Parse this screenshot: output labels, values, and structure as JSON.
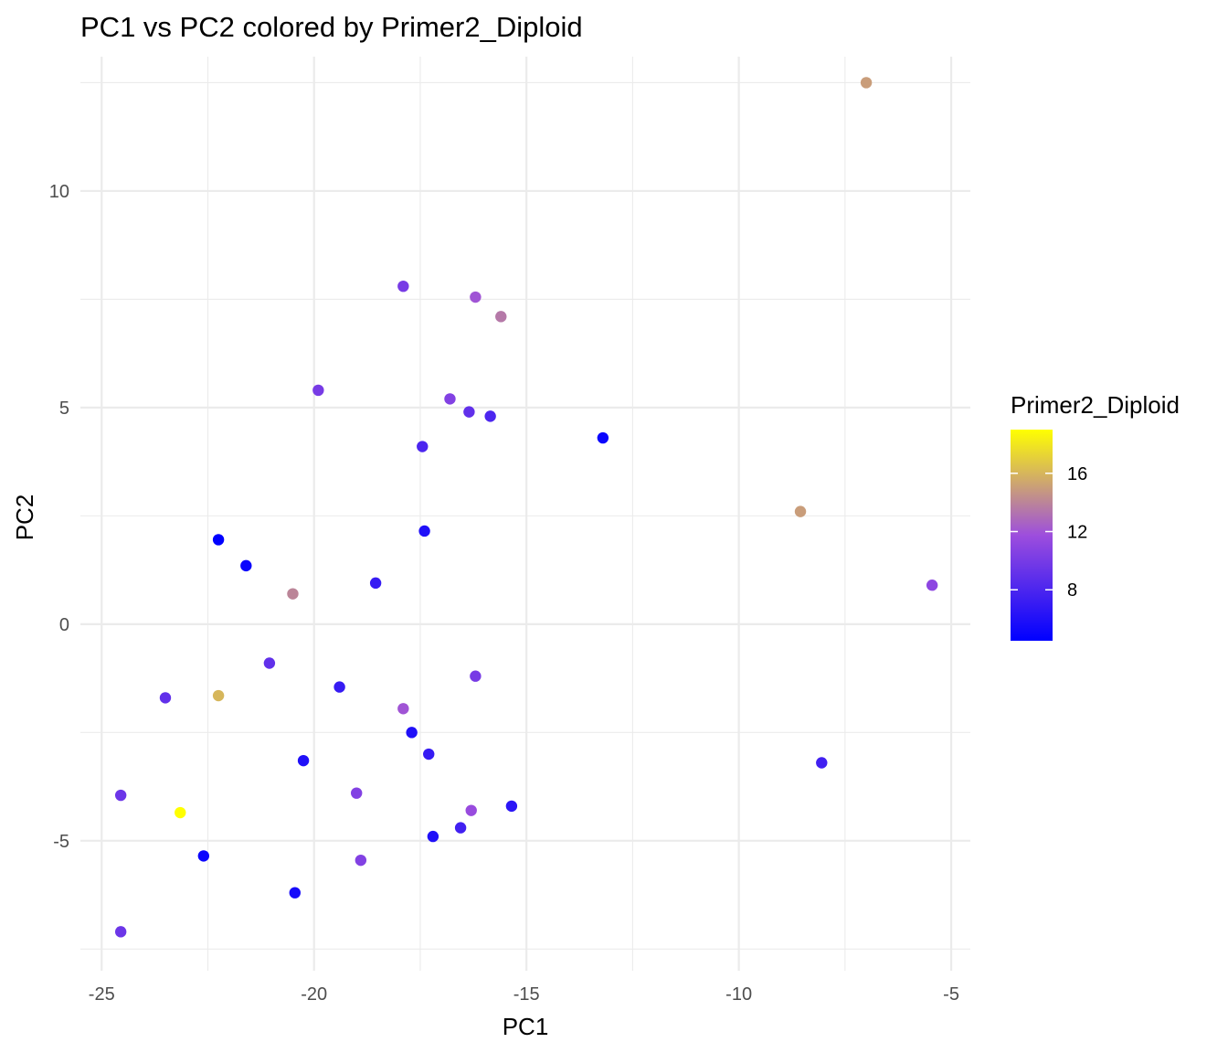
{
  "chart_data": {
    "type": "scatter",
    "title": "PC1 vs PC2 colored by Primer2_Diploid",
    "xlabel": "PC1",
    "ylabel": "PC2",
    "xlim": [
      -25.5,
      -4.55
    ],
    "ylim": [
      -8.0,
      13.1
    ],
    "x_ticks": [
      -25,
      -20,
      -15,
      -10,
      -5
    ],
    "y_ticks": [
      -5,
      0,
      5,
      10
    ],
    "x_tick_labels": [
      "-25",
      "-20",
      "-15",
      "-10",
      "-5"
    ],
    "y_tick_labels": [
      "-5",
      "0",
      "5",
      "10"
    ],
    "grid": true,
    "legend": {
      "title": "Primer2_Diploid",
      "placement": "right",
      "type": "colorbar",
      "range": [
        4.5,
        19
      ],
      "ticks": [
        8,
        12,
        16
      ],
      "tick_labels": [
        "8",
        "12",
        "16"
      ],
      "colors": [
        "#0000ff",
        "#9d4edd",
        "#ffff00"
      ]
    },
    "points": [
      {
        "x": -7.0,
        "y": 12.5,
        "value": 15
      },
      {
        "x": -17.9,
        "y": 7.8,
        "value": 10
      },
      {
        "x": -16.2,
        "y": 7.55,
        "value": 12
      },
      {
        "x": -15.6,
        "y": 7.1,
        "value": 13.5
      },
      {
        "x": -19.9,
        "y": 5.4,
        "value": 10
      },
      {
        "x": -16.8,
        "y": 5.2,
        "value": 10.5
      },
      {
        "x": -16.35,
        "y": 4.9,
        "value": 9
      },
      {
        "x": -15.85,
        "y": 4.8,
        "value": 8
      },
      {
        "x": -17.45,
        "y": 4.1,
        "value": 8
      },
      {
        "x": -13.2,
        "y": 4.3,
        "value": 5
      },
      {
        "x": -8.55,
        "y": 2.6,
        "value": 15
      },
      {
        "x": -22.25,
        "y": 1.95,
        "value": 4.5
      },
      {
        "x": -21.6,
        "y": 1.35,
        "value": 5
      },
      {
        "x": -17.4,
        "y": 2.15,
        "value": 6
      },
      {
        "x": -18.55,
        "y": 0.95,
        "value": 7
      },
      {
        "x": -20.5,
        "y": 0.7,
        "value": 14
      },
      {
        "x": -5.45,
        "y": 0.9,
        "value": 11
      },
      {
        "x": -21.05,
        "y": -0.9,
        "value": 9
      },
      {
        "x": -16.2,
        "y": -1.2,
        "value": 10
      },
      {
        "x": -23.5,
        "y": -1.7,
        "value": 9
      },
      {
        "x": -22.25,
        "y": -1.65,
        "value": 16
      },
      {
        "x": -19.4,
        "y": -1.45,
        "value": 7
      },
      {
        "x": -17.9,
        "y": -1.95,
        "value": 12
      },
      {
        "x": -17.7,
        "y": -2.5,
        "value": 6
      },
      {
        "x": -17.3,
        "y": -3.0,
        "value": 7
      },
      {
        "x": -20.25,
        "y": -3.15,
        "value": 6
      },
      {
        "x": -8.05,
        "y": -3.2,
        "value": 7.5
      },
      {
        "x": -24.55,
        "y": -3.95,
        "value": 9.5
      },
      {
        "x": -19.0,
        "y": -3.9,
        "value": 10.5
      },
      {
        "x": -23.15,
        "y": -4.35,
        "value": 19
      },
      {
        "x": -15.35,
        "y": -4.2,
        "value": 6.5
      },
      {
        "x": -16.3,
        "y": -4.3,
        "value": 11.5
      },
      {
        "x": -16.55,
        "y": -4.7,
        "value": 7.5
      },
      {
        "x": -17.2,
        "y": -4.9,
        "value": 6
      },
      {
        "x": -22.6,
        "y": -5.35,
        "value": 5
      },
      {
        "x": -18.9,
        "y": -5.45,
        "value": 10.5
      },
      {
        "x": -20.45,
        "y": -6.2,
        "value": 5.5
      },
      {
        "x": -24.55,
        "y": -7.1,
        "value": 9.5
      }
    ]
  }
}
